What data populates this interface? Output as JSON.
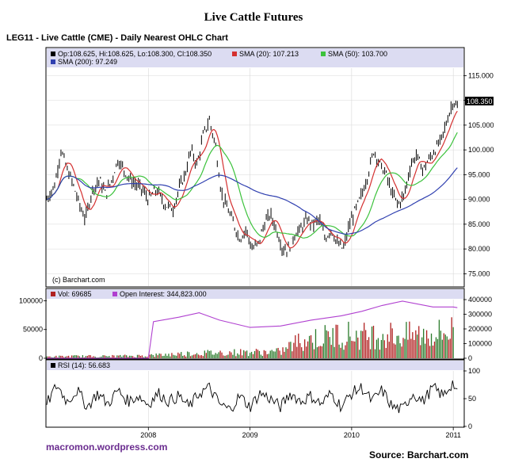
{
  "page": {
    "title": "Live Cattle Futures",
    "subtitle": "LEG11 - Live Cattle (CME) - Daily Nearest OHLC Chart",
    "footer_left": "macromon.wordpress.com",
    "footer_right": "Source:  Barchart.com"
  },
  "chart_data": [
    {
      "type": "line",
      "panel": "price",
      "legend_items": [
        {
          "text": "Op:108.625, Hi:108.625, Lo:108.300, Cl:108.350",
          "color": "#000000"
        },
        {
          "text": "SMA (20): 107.213",
          "color": "#d43030"
        },
        {
          "text": "SMA (50): 103.700",
          "color": "#3cc23c"
        },
        {
          "text": "SMA (200): 97.249",
          "color": "#3040b0"
        }
      ],
      "watermark": "(c) Barchart.com",
      "last_price_label": "108.350",
      "x_ticks": [
        "2008",
        "2009",
        "2010",
        "2011"
      ],
      "x_range": [
        2007.0,
        2011.1
      ],
      "y_ticks": [
        "75.000",
        "80.000",
        "85.000",
        "90.000",
        "95.000",
        "100.000",
        "105.000",
        "110.000",
        "115.000"
      ],
      "ylim": [
        72.5,
        116.5
      ],
      "series": [
        {
          "color": "#000000",
          "style": "ohlc",
          "x": [
            2007.0,
            2007.08,
            2007.14,
            2007.2,
            2007.26,
            2007.32,
            2007.38,
            2007.45,
            2007.52,
            2007.58,
            2007.64,
            2007.7,
            2007.76,
            2007.82,
            2007.88,
            2007.94,
            2008.0,
            2008.08,
            2008.16,
            2008.24,
            2008.3,
            2008.36,
            2008.42,
            2008.48,
            2008.54,
            2008.6,
            2008.66,
            2008.72,
            2008.78,
            2008.84,
            2008.9,
            2008.96,
            2009.02,
            2009.08,
            2009.14,
            2009.2,
            2009.26,
            2009.32,
            2009.38,
            2009.44,
            2009.5,
            2009.56,
            2009.62,
            2009.68,
            2009.74,
            2009.8,
            2009.86,
            2009.92,
            2009.98,
            2010.04,
            2010.1,
            2010.16,
            2010.22,
            2010.28,
            2010.34,
            2010.4,
            2010.46,
            2010.52,
            2010.58,
            2010.64,
            2010.7,
            2010.76,
            2010.82,
            2010.88,
            2010.94,
            2011.0,
            2011.04
          ],
          "y": [
            90,
            93,
            100,
            96,
            93,
            89,
            86,
            92,
            94,
            91,
            94,
            98,
            96,
            94,
            93,
            92,
            90,
            92,
            89,
            88,
            92,
            95,
            100,
            97,
            103,
            106,
            101,
            91,
            88,
            85,
            82,
            84,
            80,
            81,
            85,
            87,
            84,
            80,
            80,
            83,
            84,
            86,
            85,
            86,
            82,
            84,
            81,
            80,
            85,
            88,
            91,
            95,
            100,
            97,
            95,
            91,
            89,
            91,
            97,
            99,
            96,
            98,
            100,
            102,
            106,
            110,
            108.35
          ]
        }
      ]
    },
    {
      "type": "bar",
      "panel": "volume",
      "legend_items": [
        {
          "text": "Vol: 69685",
          "color": "#b02020"
        },
        {
          "text": "Open Interest: 344,823.000",
          "color": "#b040d0"
        }
      ],
      "y_ticks_left": [
        "0",
        "50000",
        "100000"
      ],
      "y_ticks_right": [
        "0",
        "100000",
        "200000",
        "300000",
        "400000"
      ],
      "ylim": [
        0,
        100000
      ],
      "series": [
        {
          "name": "Vol",
          "color": "#2a7a2a",
          "x": [
            2007.05,
            2007.3,
            2007.6,
            2007.9,
            2008.1,
            2008.4,
            2008.7,
            2009.0,
            2009.3,
            2009.5,
            2009.7,
            2009.9,
            2010.1,
            2010.3,
            2010.5,
            2010.7,
            2010.9,
            2011.0
          ],
          "values": [
            4000,
            5000,
            5000,
            6000,
            8000,
            12000,
            14000,
            15000,
            16000,
            45000,
            50000,
            60000,
            55000,
            60000,
            55000,
            58000,
            62000,
            69685
          ]
        },
        {
          "name": "Open Interest",
          "color": "#b040d0",
          "x": [
            2007.0,
            2008.0,
            2008.05,
            2008.3,
            2008.5,
            2008.7,
            2009.0,
            2009.3,
            2009.6,
            2009.9,
            2010.1,
            2010.3,
            2010.5,
            2010.8,
            2011.0,
            2011.04
          ],
          "values": [
            0,
            0,
            250000,
            280000,
            310000,
            260000,
            210000,
            220000,
            260000,
            290000,
            320000,
            360000,
            390000,
            350000,
            350000,
            344823
          ]
        }
      ]
    },
    {
      "type": "line",
      "panel": "rsi",
      "legend_items": [
        {
          "text": "RSI (14): 56.683",
          "color": "#000000"
        }
      ],
      "y_ticks": [
        "0",
        "50",
        "100"
      ],
      "ylim": [
        0,
        100
      ],
      "series": [
        {
          "name": "RSI (14)",
          "color": "#000000",
          "x": [
            2007.0,
            2007.1,
            2007.2,
            2007.3,
            2007.4,
            2007.5,
            2007.6,
            2007.7,
            2007.8,
            2007.9,
            2008.0,
            2008.1,
            2008.2,
            2008.3,
            2008.4,
            2008.5,
            2008.6,
            2008.7,
            2008.8,
            2008.9,
            2009.0,
            2009.1,
            2009.2,
            2009.3,
            2009.4,
            2009.5,
            2009.6,
            2009.7,
            2009.8,
            2009.9,
            2010.0,
            2010.1,
            2010.2,
            2010.3,
            2010.4,
            2010.5,
            2010.6,
            2010.7,
            2010.8,
            2010.9,
            2011.0,
            2011.04
          ],
          "values": [
            40,
            75,
            45,
            65,
            35,
            60,
            40,
            65,
            45,
            55,
            40,
            60,
            45,
            55,
            35,
            60,
            70,
            40,
            30,
            55,
            35,
            60,
            50,
            35,
            60,
            45,
            55,
            40,
            60,
            35,
            60,
            70,
            45,
            65,
            35,
            30,
            60,
            45,
            70,
            55,
            80,
            56.683
          ]
        }
      ]
    }
  ]
}
